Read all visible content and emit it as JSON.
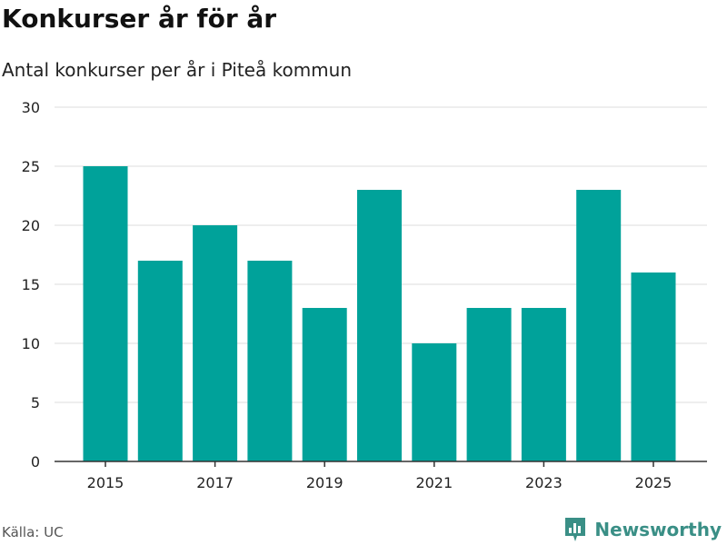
{
  "title": "Konkurser år för år",
  "subtitle": "Antal konkurser per år i Piteå kommun",
  "source": "Källa: UC",
  "brand": {
    "name": "Newsworthy",
    "icon": "bar-chart-logo-icon",
    "color": "#3a8f86"
  },
  "chart_data": {
    "type": "bar",
    "categories": [
      "2015",
      "2016",
      "2017",
      "2018",
      "2019",
      "2020",
      "2021",
      "2022",
      "2023",
      "2024",
      "2025"
    ],
    "values": [
      25,
      17,
      20,
      17,
      13,
      23,
      10,
      13,
      13,
      23,
      16
    ],
    "x_tick_labels": [
      "2015",
      "2017",
      "2019",
      "2021",
      "2023",
      "2025"
    ],
    "y_ticks": [
      "0",
      "5",
      "10",
      "15",
      "20",
      "25",
      "30"
    ],
    "ylim": [
      0,
      30
    ],
    "xlabel": "",
    "ylabel": "",
    "bar_color": "#00a29a",
    "grid": true
  }
}
